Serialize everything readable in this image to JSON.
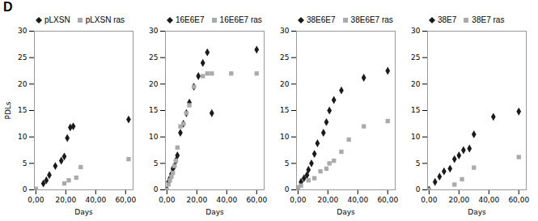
{
  "chart_data": [
    {
      "type": "scatter",
      "title": "D",
      "xlabel": "Days",
      "ylabel": "PDLs",
      "xlim": [
        -1,
        65
      ],
      "ylim": [
        0,
        30
      ],
      "xticks": [
        {
          "value": 0,
          "label": "0,00"
        },
        {
          "value": 20,
          "label": "20,00"
        },
        {
          "value": 40,
          "label": "40,00"
        },
        {
          "value": 60,
          "label": "60,00"
        }
      ],
      "yticks": [
        0,
        5,
        10,
        15,
        20,
        25,
        30
      ],
      "grid": false,
      "legend": "upper left",
      "series": [
        {
          "name": "pLXSN",
          "color": "#1a1a1a",
          "marker": "diamond",
          "x": [
            5,
            7,
            9,
            13,
            17,
            19,
            21,
            23,
            25,
            62
          ],
          "values": [
            1.2,
            1.8,
            2.8,
            4.5,
            5.5,
            6.3,
            9.8,
            11.8,
            12.0,
            13.3
          ]
        },
        {
          "name": "pLXSN ras",
          "color": "#aaaaaa",
          "marker": "square",
          "x": [
            0,
            19,
            22,
            27,
            30,
            62
          ],
          "values": [
            0.2,
            1.2,
            1.8,
            2.3,
            4.3,
            5.8
          ]
        }
      ]
    },
    {
      "type": "scatter",
      "xlabel": "Days",
      "xlim": [
        -1,
        65
      ],
      "ylim": [
        0,
        30
      ],
      "xticks": [
        {
          "value": 0,
          "label": "0,00"
        },
        {
          "value": 20,
          "label": "20,00"
        },
        {
          "value": 40,
          "label": "40,00"
        },
        {
          "value": 60,
          "label": "60,00"
        }
      ],
      "yticks": [
        0,
        5,
        10,
        15,
        20,
        25,
        30
      ],
      "grid": false,
      "legend": "upper left",
      "series": [
        {
          "name": "16E6E7",
          "color": "#1a1a1a",
          "marker": "diamond",
          "x": [
            0,
            1,
            2,
            3,
            4,
            5,
            6,
            7,
            9,
            11,
            13,
            15,
            18,
            21,
            24,
            27,
            30,
            60
          ],
          "values": [
            0,
            1.5,
            2.2,
            3.0,
            4.0,
            4.5,
            5.5,
            6.5,
            10.8,
            12.5,
            14.5,
            16.5,
            19.5,
            21.5,
            24.0,
            26.0,
            14.5,
            26.5
          ]
        },
        {
          "name": "16E6E7 ras",
          "color": "#aaaaaa",
          "marker": "square",
          "x": [
            0,
            1,
            2,
            3,
            4,
            5,
            6,
            7,
            9,
            11,
            13,
            15,
            18,
            24,
            27,
            30,
            43,
            60
          ],
          "values": [
            0,
            1.0,
            1.8,
            2.5,
            3.2,
            4.5,
            5.5,
            8.0,
            12.0,
            12.5,
            14.5,
            16.0,
            19.5,
            21.5,
            22.0,
            22.0,
            22.0,
            22.0
          ]
        }
      ]
    },
    {
      "type": "scatter",
      "xlabel": "Days",
      "xlim": [
        -1,
        65
      ],
      "ylim": [
        0,
        30
      ],
      "xticks": [
        {
          "value": 0,
          "label": "0,00"
        },
        {
          "value": 20,
          "label": "20,00"
        },
        {
          "value": 40,
          "label": "40,00"
        },
        {
          "value": 60,
          "label": "60,00"
        }
      ],
      "yticks": [
        0,
        5,
        10,
        15,
        20,
        25,
        30
      ],
      "grid": false,
      "legend": "upper left",
      "series": [
        {
          "name": "38E6E7",
          "color": "#1a1a1a",
          "marker": "diamond",
          "x": [
            0,
            2,
            4,
            6,
            7,
            9,
            11,
            13,
            17,
            19,
            21,
            24,
            29,
            44,
            60
          ],
          "values": [
            0,
            1.5,
            2.2,
            2.8,
            3.8,
            5.0,
            6.8,
            8.8,
            10.8,
            12.8,
            15.0,
            17.0,
            18.8,
            21.2,
            22.5
          ]
        },
        {
          "name": "38E6E7 ras",
          "color": "#aaaaaa",
          "marker": "square",
          "x": [
            0,
            2,
            7,
            11,
            15,
            19,
            21,
            24,
            29,
            34,
            44,
            60
          ],
          "values": [
            0.5,
            0.8,
            1.8,
            2.2,
            3.5,
            4.0,
            5.0,
            5.5,
            7.2,
            9.5,
            12.0,
            13.0
          ]
        }
      ]
    },
    {
      "type": "scatter",
      "xlabel": "Days",
      "xlim": [
        -1,
        65
      ],
      "ylim": [
        0,
        30
      ],
      "xticks": [
        {
          "value": 0,
          "label": "0,00"
        },
        {
          "value": 20,
          "label": "20,00"
        },
        {
          "value": 40,
          "label": "40,00"
        },
        {
          "value": 60,
          "label": "60,00"
        }
      ],
      "yticks": [
        0,
        5,
        10,
        15,
        20,
        25,
        30
      ],
      "grid": false,
      "legend": "upper left",
      "series": [
        {
          "name": "38E7",
          "color": "#1a1a1a",
          "marker": "diamond",
          "x": [
            0,
            4,
            7,
            10,
            14,
            17,
            20,
            23,
            27,
            30,
            43,
            60
          ],
          "values": [
            0,
            1.5,
            2.5,
            3.5,
            4.0,
            5.8,
            6.5,
            7.5,
            7.8,
            10.5,
            13.8,
            14.8
          ]
        },
        {
          "name": "38E7 ras",
          "color": "#aaaaaa",
          "marker": "square",
          "x": [
            0,
            17,
            22,
            30,
            60
          ],
          "values": [
            0,
            1.0,
            2.0,
            4.2,
            6.2
          ]
        }
      ]
    }
  ]
}
